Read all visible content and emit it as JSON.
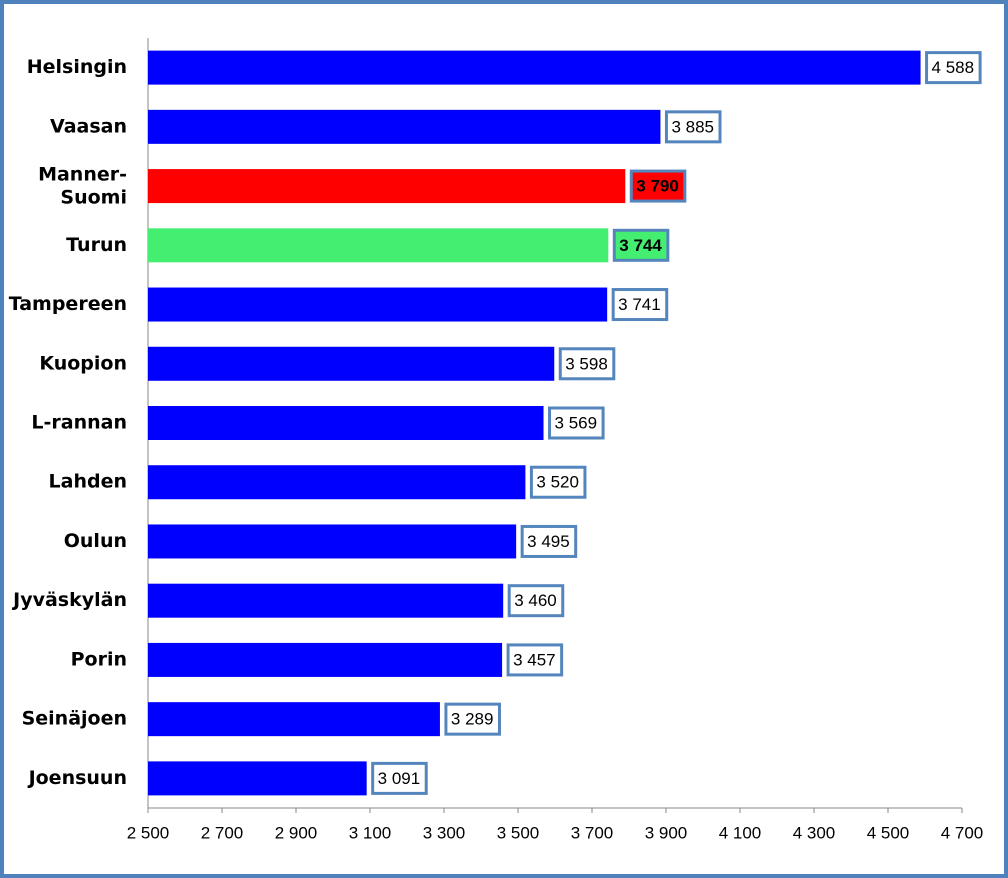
{
  "chart_data": {
    "type": "bar",
    "orientation": "horizontal",
    "categories": [
      "Helsingin",
      "Vaasan",
      "Manner-\nSuomi",
      "Turun",
      "Tampereen",
      "Kuopion",
      "L-rannan",
      "Lahden",
      "Oulun",
      "Jyväskylän",
      "Porin",
      "Seinäjoen",
      "Joensuun"
    ],
    "values": [
      4588,
      3885,
      3790,
      3744,
      3741,
      3598,
      3569,
      3520,
      3495,
      3460,
      3457,
      3289,
      3091
    ],
    "value_labels": [
      "4 588",
      "3 885",
      "3 790",
      "3 744",
      "3 741",
      "3 598",
      "3 569",
      "3 520",
      "3 495",
      "3 460",
      "3 457",
      "3 289",
      "3 091"
    ],
    "colors": [
      "#0000ff",
      "#0000ff",
      "#ff0000",
      "#44ee70",
      "#0000ff",
      "#0000ff",
      "#0000ff",
      "#0000ff",
      "#0000ff",
      "#0000ff",
      "#0000ff",
      "#0000ff",
      "#0000ff"
    ],
    "xlim": [
      2500,
      4700
    ],
    "xticks": [
      {
        "value": 2500,
        "label": "2 500"
      },
      {
        "value": 2700,
        "label": "2 700"
      },
      {
        "value": 2900,
        "label": "2 900"
      },
      {
        "value": 3100,
        "label": "3 100"
      },
      {
        "value": 3300,
        "label": "3 300"
      },
      {
        "value": 3500,
        "label": "3 500"
      },
      {
        "value": 3700,
        "label": "3 700"
      },
      {
        "value": 3900,
        "label": "3 900"
      },
      {
        "value": 4100,
        "label": "4 100"
      },
      {
        "value": 4300,
        "label": "4 300"
      },
      {
        "value": 4500,
        "label": "4 500"
      },
      {
        "value": 4700,
        "label": "4 700"
      }
    ],
    "grid": false
  }
}
